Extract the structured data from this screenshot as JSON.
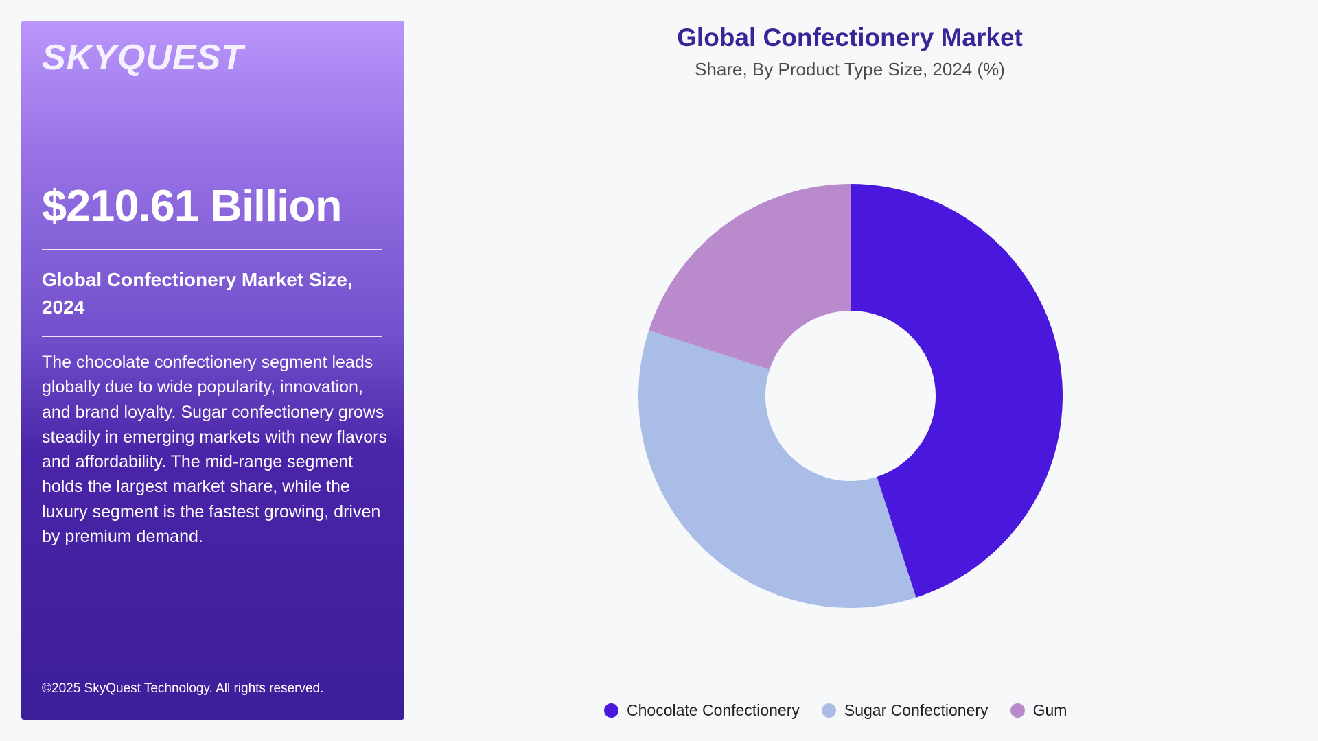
{
  "panel": {
    "logo": "SKYQUEST",
    "headline": "$210.61 Billion",
    "subtitle": "Global Confectionery Market Size, 2024",
    "description": "The chocolate confectionery segment leads globally due to wide popularity, innovation, and brand loyalty. Sugar confectionery grows steadily in emerging markets with new flavors and affordability. The mid-range segment holds the largest market share, while the luxury segment is the fastest growing, driven by premium demand.",
    "copyright": "©2025 SkyQuest Technology. All rights reserved."
  },
  "colors": {
    "chocolate": "#4a17dd",
    "sugar": "#a9bde7",
    "gum": "#b98bcc",
    "title": "#3b2596"
  },
  "chart_data": {
    "type": "pie",
    "donut": true,
    "title": "Global Confectionery Market",
    "subtitle": "Share, By Product Type Size, 2024 (%)",
    "legend_position": "bottom",
    "categories": [
      "Chocolate Confectionery",
      "Sugar Confectionery",
      "Gum"
    ],
    "values": [
      45,
      35,
      20
    ],
    "colors": [
      "#4a17dd",
      "#a9bde7",
      "#b98bcc"
    ]
  }
}
